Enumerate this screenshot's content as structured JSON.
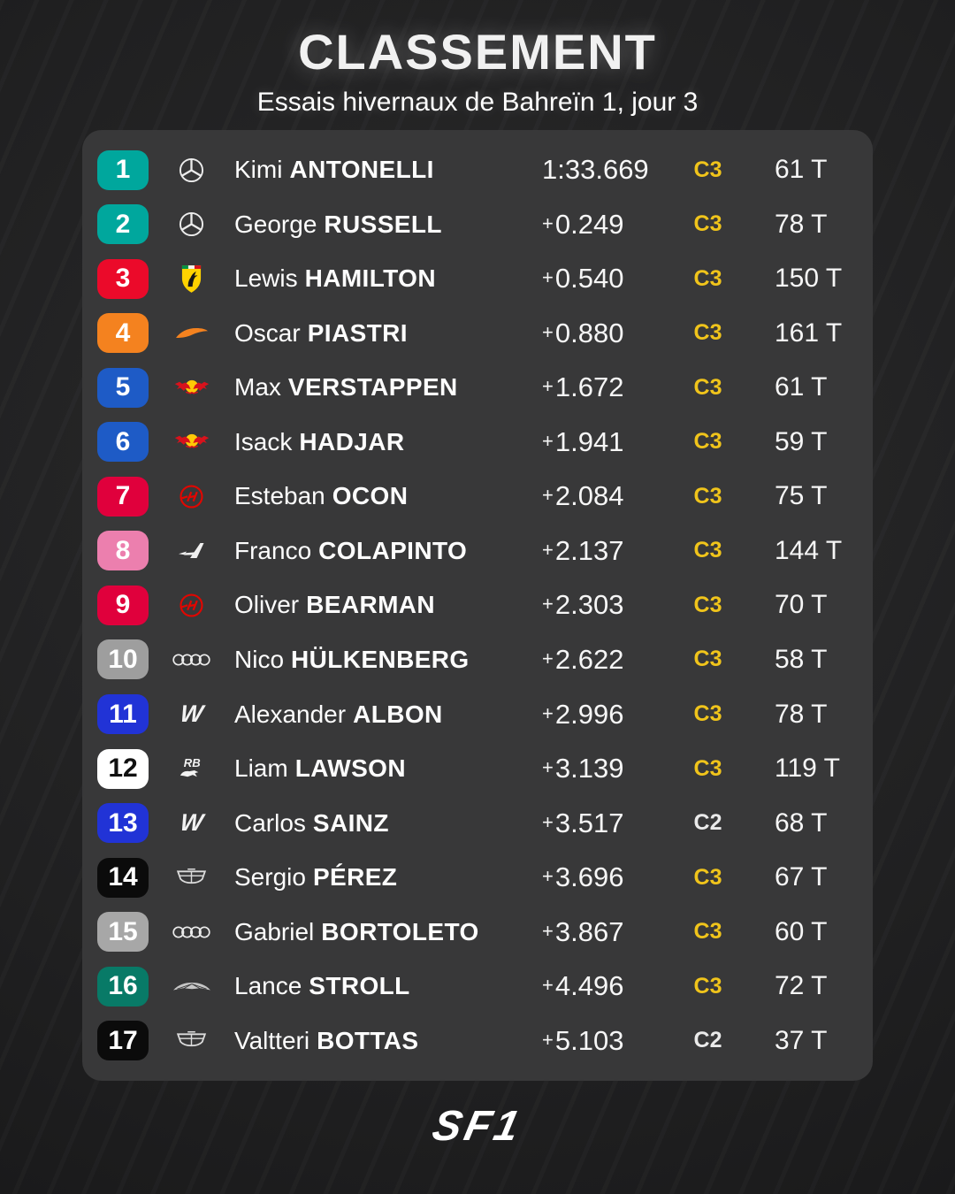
{
  "header": {
    "title": "CLASSEMENT",
    "subtitle": "Essais hivernaux de Bahreïn 1, jour 3"
  },
  "footer": {
    "logo": "SF1"
  },
  "colors": {
    "page_background": "#202021",
    "panel_background": "#383839",
    "compound": {
      "C3": "#F0C41B",
      "C2": "#EAEAEA"
    }
  },
  "table": {
    "rows": [
      {
        "pos": "1",
        "team": "mercedes",
        "logo_icon": "mercedes-logo-icon",
        "first": "Kimi",
        "last": "ANTONELLI",
        "time": "1:33.669",
        "compound": "C3",
        "laps": "61 T",
        "box_bg": "#00A79D",
        "box_fg": "#FFFFFF"
      },
      {
        "pos": "2",
        "team": "mercedes",
        "logo_icon": "mercedes-logo-icon",
        "first": "George",
        "last": "RUSSELL",
        "time": "+0.249",
        "compound": "C3",
        "laps": "78 T",
        "box_bg": "#00A79D",
        "box_fg": "#FFFFFF"
      },
      {
        "pos": "3",
        "team": "ferrari",
        "logo_icon": "ferrari-logo-icon",
        "first": "Lewis",
        "last": "HAMILTON",
        "time": "+0.540",
        "compound": "C3",
        "laps": "150 T",
        "box_bg": "#EB0A2A",
        "box_fg": "#FFFFFF"
      },
      {
        "pos": "4",
        "team": "mclaren",
        "logo_icon": "mclaren-logo-icon",
        "first": "Oscar",
        "last": "PIASTRI",
        "time": "+0.880",
        "compound": "C3",
        "laps": "161 T",
        "box_bg": "#F4821F",
        "box_fg": "#FFFFFF"
      },
      {
        "pos": "5",
        "team": "redbull",
        "logo_icon": "redbull-logo-icon",
        "first": "Max",
        "last": "VERSTAPPEN",
        "time": "+1.672",
        "compound": "C3",
        "laps": "61 T",
        "box_bg": "#1E5BC6",
        "box_fg": "#FFFFFF"
      },
      {
        "pos": "6",
        "team": "redbull",
        "logo_icon": "redbull-logo-icon",
        "first": "Isack",
        "last": "HADJAR",
        "time": "+1.941",
        "compound": "C3",
        "laps": "59 T",
        "box_bg": "#1E5BC6",
        "box_fg": "#FFFFFF"
      },
      {
        "pos": "7",
        "team": "haas",
        "logo_icon": "haas-logo-icon",
        "first": "Esteban",
        "last": "OCON",
        "time": "+2.084",
        "compound": "C3",
        "laps": "75 T",
        "box_bg": "#E0003C",
        "box_fg": "#FFFFFF"
      },
      {
        "pos": "8",
        "team": "alpine",
        "logo_icon": "alpine-logo-icon",
        "first": "Franco",
        "last": "COLAPINTO",
        "time": "+2.137",
        "compound": "C3",
        "laps": "144 T",
        "box_bg": "#EC7FAE",
        "box_fg": "#FFFFFF"
      },
      {
        "pos": "9",
        "team": "haas",
        "logo_icon": "haas-logo-icon",
        "first": "Oliver",
        "last": "BEARMAN",
        "time": "+2.303",
        "compound": "C3",
        "laps": "70 T",
        "box_bg": "#E0003C",
        "box_fg": "#FFFFFF"
      },
      {
        "pos": "10",
        "team": "audi",
        "logo_icon": "audi-logo-icon",
        "first": "Nico",
        "last": "HÜLKENBERG",
        "time": "+2.622",
        "compound": "C3",
        "laps": "58 T",
        "box_bg": "#9E9E9E",
        "box_fg": "#FFFFFF"
      },
      {
        "pos": "11",
        "team": "williams",
        "logo_icon": "williams-logo-icon",
        "first": "Alexander",
        "last": "ALBON",
        "time": "+2.996",
        "compound": "C3",
        "laps": "78 T",
        "box_bg": "#2133D6",
        "box_fg": "#FFFFFF"
      },
      {
        "pos": "12",
        "team": "racingbulls",
        "logo_icon": "racing-bulls-logo-icon",
        "first": "Liam",
        "last": "LAWSON",
        "time": "+3.139",
        "compound": "C3",
        "laps": "119 T",
        "box_bg": "#FFFFFF",
        "box_fg": "#111111"
      },
      {
        "pos": "13",
        "team": "williams",
        "logo_icon": "williams-logo-icon",
        "first": "Carlos",
        "last": "SAINZ",
        "time": "+3.517",
        "compound": "C2",
        "laps": "68 T",
        "box_bg": "#2133D6",
        "box_fg": "#FFFFFF"
      },
      {
        "pos": "14",
        "team": "cadillac",
        "logo_icon": "cadillac-logo-icon",
        "first": "Sergio",
        "last": "PÉREZ",
        "time": "+3.696",
        "compound": "C3",
        "laps": "67 T",
        "box_bg": "#0B0B0B",
        "box_fg": "#FFFFFF"
      },
      {
        "pos": "15",
        "team": "audi",
        "logo_icon": "audi-logo-icon",
        "first": "Gabriel",
        "last": "BORTOLETO",
        "time": "+3.867",
        "compound": "C3",
        "laps": "60 T",
        "box_bg": "#A7A7A7",
        "box_fg": "#FFFFFF"
      },
      {
        "pos": "16",
        "team": "aston",
        "logo_icon": "aston-martin-logo-icon",
        "first": "Lance",
        "last": "STROLL",
        "time": "+4.496",
        "compound": "C3",
        "laps": "72 T",
        "box_bg": "#087A67",
        "box_fg": "#FFFFFF"
      },
      {
        "pos": "17",
        "team": "cadillac",
        "logo_icon": "cadillac-logo-icon",
        "first": "Valtteri",
        "last": "BOTTAS",
        "time": "+5.103",
        "compound": "C2",
        "laps": "37 T",
        "box_bg": "#0B0B0B",
        "box_fg": "#FFFFFF"
      }
    ]
  }
}
